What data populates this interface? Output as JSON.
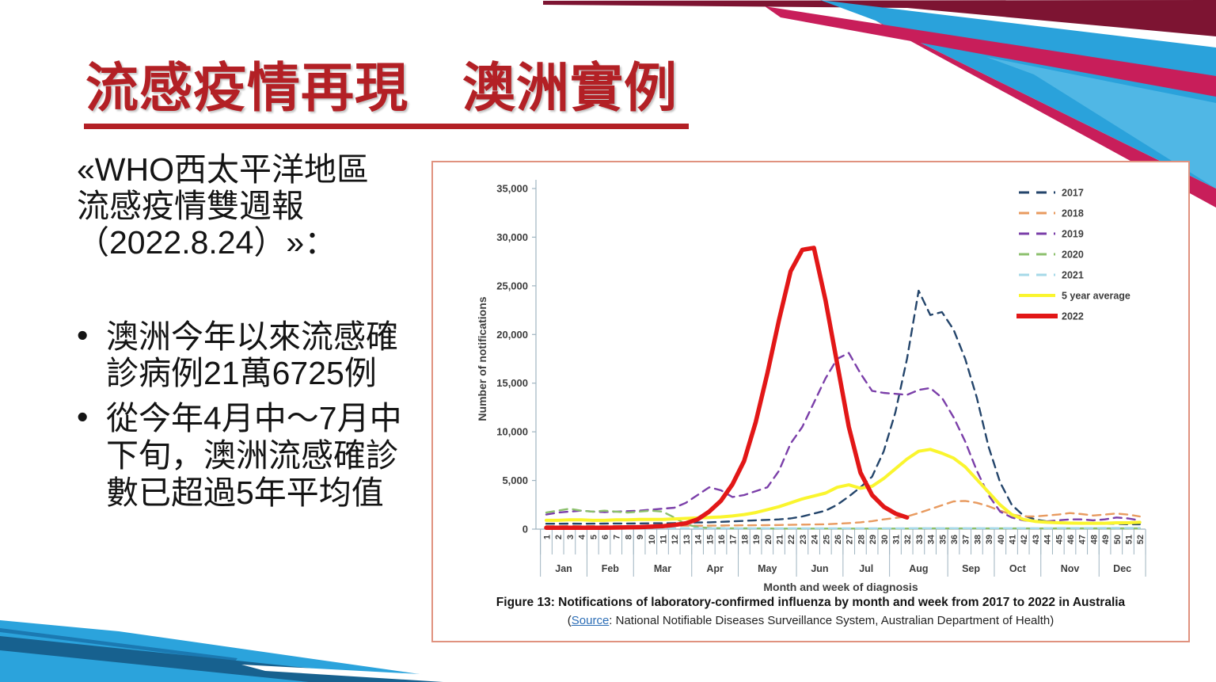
{
  "slide": {
    "title": "流感疫情再現　澳洲實例",
    "intro_lines": [
      "«WHO西太平洋地區",
      "流感疫情雙週報",
      "（2022.8.24）»："
    ],
    "bullets": [
      "澳洲今年以來流感確診病例21萬6725例",
      "從今年4月中～7月中下旬，澳洲流感確診數已超過5年平均值"
    ]
  },
  "figure": {
    "caption": "Figure 13: Notifications of laboratory-confirmed influenza by month and week from 2017 to 2022 in Australia",
    "source_prefix": "(",
    "source_link": "Source",
    "source_rest": ": National Notifiable Diseases Surveillance System, Australian Department of Health)"
  },
  "chart_data": {
    "type": "line",
    "title": "",
    "xlabel": "Month and week of diagnosis",
    "ylabel": "Number of notifications",
    "ylim": [
      0,
      35000
    ],
    "ytick_step": 5000,
    "num_weeks": 52,
    "grid": false,
    "legend_position": "top-right",
    "months": [
      {
        "label": "Jan",
        "weeks": 4
      },
      {
        "label": "Feb",
        "weeks": 4
      },
      {
        "label": "Mar",
        "weeks": 5
      },
      {
        "label": "Apr",
        "weeks": 4
      },
      {
        "label": "May",
        "weeks": 5
      },
      {
        "label": "Jun",
        "weeks": 4
      },
      {
        "label": "Jul",
        "weeks": 4
      },
      {
        "label": "Aug",
        "weeks": 5
      },
      {
        "label": "Sep",
        "weeks": 4
      },
      {
        "label": "Oct",
        "weeks": 4
      },
      {
        "label": "Nov",
        "weeks": 5
      },
      {
        "label": "Dec",
        "weeks": 4
      }
    ],
    "series": [
      {
        "name": "2017",
        "color": "#24456B",
        "style": "dashed",
        "width": 2.4,
        "values": [
          550,
          550,
          560,
          550,
          560,
          570,
          580,
          580,
          590,
          600,
          600,
          620,
          650,
          680,
          700,
          750,
          800,
          850,
          900,
          950,
          1000,
          1100,
          1300,
          1600,
          1900,
          2500,
          3350,
          4300,
          5400,
          8000,
          12000,
          17500,
          24500,
          22000,
          22300,
          20500,
          17500,
          13500,
          8500,
          4800,
          2500,
          1400,
          1000,
          800,
          700,
          650,
          600,
          600,
          550,
          550,
          500,
          500
        ]
      },
      {
        "name": "2018",
        "color": "#E89A5F",
        "style": "dashed",
        "width": 2.4,
        "values": [
          300,
          300,
          310,
          300,
          310,
          300,
          310,
          320,
          320,
          330,
          330,
          340,
          350,
          350,
          360,
          370,
          380,
          390,
          400,
          410,
          420,
          440,
          460,
          480,
          500,
          550,
          620,
          700,
          820,
          1000,
          1150,
          1300,
          1650,
          2050,
          2450,
          2850,
          2900,
          2700,
          2350,
          1900,
          1500,
          1300,
          1300,
          1400,
          1500,
          1650,
          1550,
          1400,
          1500,
          1600,
          1500,
          1300
        ]
      },
      {
        "name": "2019",
        "color": "#7B3FA9",
        "style": "dashed",
        "width": 2.4,
        "values": [
          1500,
          1700,
          1800,
          1900,
          1800,
          1750,
          1800,
          1850,
          1900,
          2000,
          2100,
          2200,
          2700,
          3500,
          4300,
          4000,
          3300,
          3500,
          3900,
          4300,
          6000,
          8800,
          10500,
          13000,
          15500,
          17500,
          18100,
          16000,
          14200,
          14000,
          13900,
          13800,
          14300,
          14500,
          13500,
          11500,
          9000,
          6000,
          3500,
          1800,
          1200,
          900,
          800,
          800,
          900,
          1000,
          1000,
          900,
          1000,
          1200,
          1100,
          900
        ]
      },
      {
        "name": "2020",
        "color": "#8CC06D",
        "style": "dashed",
        "width": 2.4,
        "values": [
          1700,
          1900,
          2100,
          1900,
          1800,
          1900,
          1800,
          1700,
          1800,
          1900,
          1800,
          1200,
          500,
          200,
          120,
          100,
          80,
          80,
          70,
          70,
          60,
          60,
          60,
          60,
          60,
          60,
          60,
          60,
          60,
          60,
          60,
          60,
          70,
          70,
          70,
          70,
          70,
          70,
          70,
          70,
          70,
          70,
          70,
          70,
          80,
          80,
          80,
          80,
          80,
          80,
          80,
          80
        ]
      },
      {
        "name": "2021",
        "color": "#A6D9E8",
        "style": "dashed",
        "width": 2.4,
        "values": [
          100,
          100,
          110,
          100,
          100,
          100,
          100,
          100,
          100,
          100,
          100,
          100,
          100,
          100,
          90,
          90,
          90,
          90,
          90,
          90,
          90,
          90,
          90,
          90,
          90,
          90,
          90,
          90,
          90,
          90,
          90,
          90,
          100,
          100,
          100,
          100,
          100,
          100,
          100,
          100,
          100,
          100,
          100,
          100,
          110,
          110,
          110,
          110,
          120,
          120,
          120,
          120
        ]
      },
      {
        "name": "5 year average",
        "color": "#FAF52E",
        "style": "solid",
        "width": 4,
        "values": [
          900,
          900,
          950,
          950,
          900,
          900,
          950,
          950,
          1000,
          1000,
          1000,
          1050,
          1100,
          1150,
          1200,
          1250,
          1350,
          1500,
          1700,
          2000,
          2300,
          2700,
          3100,
          3400,
          3700,
          4300,
          4550,
          4200,
          4400,
          5200,
          6200,
          7200,
          8000,
          8200,
          7800,
          7300,
          6400,
          5100,
          3800,
          2500,
          1500,
          1000,
          800,
          700,
          650,
          620,
          600,
          600,
          600,
          650,
          650,
          700
        ]
      },
      {
        "name": "2022",
        "color": "#E21717",
        "style": "solid",
        "width": 5.5,
        "values": [
          150,
          150,
          150,
          150,
          150,
          150,
          160,
          180,
          200,
          250,
          300,
          420,
          600,
          1000,
          1800,
          2900,
          4600,
          7000,
          11000,
          16000,
          21500,
          26500,
          28700,
          28900,
          23500,
          17000,
          10500,
          5800,
          3500,
          2300,
          1600,
          1200,
          null,
          null,
          null,
          null,
          null,
          null,
          null,
          null,
          null,
          null,
          null,
          null,
          null,
          null,
          null,
          null,
          null,
          null,
          null,
          null
        ]
      }
    ]
  },
  "colors": {
    "title_red": "#B32025",
    "figure_border": "#E0927F",
    "source_link_blue": "#2A6CB5",
    "axis_gray": "#9FB4C0",
    "ribbon_maroon": "#7D1432",
    "ribbon_crimson": "#C81E5A",
    "ribbon_blue": "#2AA2DB",
    "ribbon_dark_blue": "#17618F"
  }
}
